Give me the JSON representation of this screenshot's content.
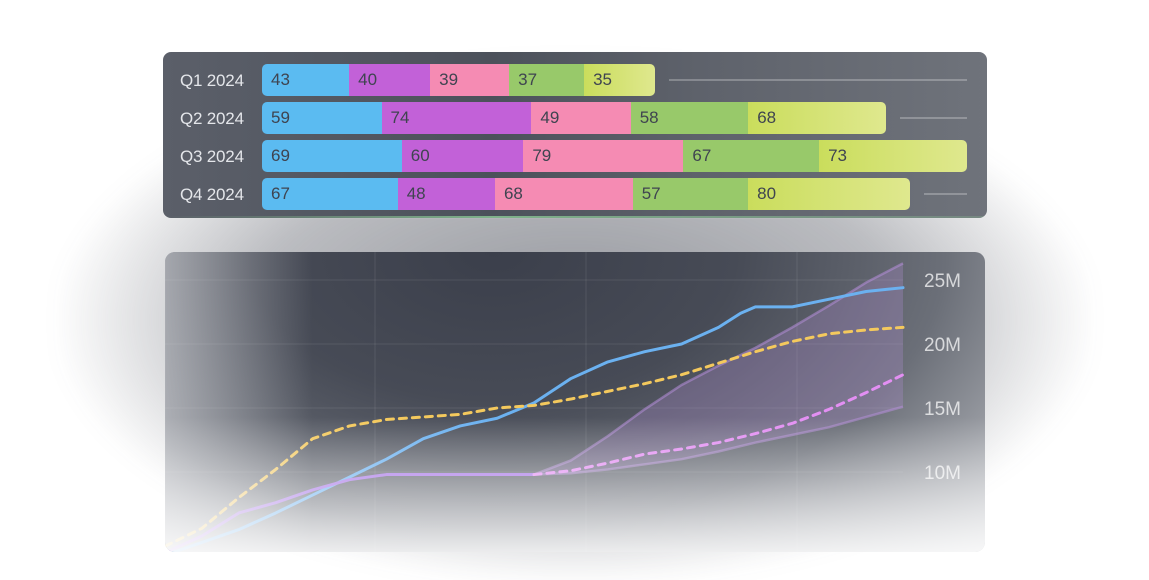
{
  "chart_data": [
    {
      "type": "bar",
      "orientation": "horizontal",
      "stacked": true,
      "categories": [
        "Q1 2024",
        "Q2 2024",
        "Q3 2024",
        "Q4 2024"
      ],
      "series": [
        {
          "values": [
            43,
            59,
            69,
            67
          ],
          "color": "#5bbbf1"
        },
        {
          "values": [
            40,
            74,
            60,
            48
          ],
          "color": "#c261d8"
        },
        {
          "values": [
            39,
            49,
            79,
            68
          ],
          "color": "#f58bb3"
        },
        {
          "values": [
            37,
            58,
            67,
            57
          ],
          "color": "#98c96a"
        },
        {
          "values": [
            35,
            68,
            73,
            80
          ],
          "color": "#cadd5c"
        }
      ],
      "xlim": [
        0,
        348
      ]
    },
    {
      "type": "line",
      "y_ticks": [
        "10M",
        "15M",
        "20M",
        "25M"
      ],
      "ylim": [
        0,
        28
      ],
      "xlim": [
        0,
        100
      ],
      "grid": true,
      "series": [
        {
          "style": "solid",
          "color": "#6bb1f0",
          "x": [
            0,
            5,
            10,
            15,
            20,
            25,
            30,
            35,
            40,
            45,
            50,
            55,
            60,
            65,
            70,
            75,
            78,
            80,
            82,
            85,
            90,
            95,
            100
          ],
          "y": [
            3.5,
            4.5,
            5.5,
            6.8,
            8.2,
            9.6,
            11.0,
            12.6,
            13.6,
            14.2,
            15.4,
            17.3,
            18.6,
            19.4,
            20.0,
            21.3,
            22.4,
            22.9,
            22.9,
            22.9,
            23.5,
            24.1,
            24.4
          ]
        },
        {
          "style": "dashed",
          "color": "#f4c95d",
          "x": [
            0,
            5,
            10,
            15,
            20,
            25,
            30,
            35,
            40,
            45,
            50,
            55,
            60,
            65,
            70,
            75,
            80,
            85,
            90,
            95,
            100
          ],
          "y": [
            4.2,
            5.6,
            8.0,
            10.2,
            12.6,
            13.6,
            14.1,
            14.3,
            14.5,
            15.0,
            15.2,
            15.7,
            16.3,
            16.9,
            17.6,
            18.5,
            19.4,
            20.2,
            20.8,
            21.1,
            21.3
          ]
        },
        {
          "style": "solid",
          "color": "#a573e6",
          "x": [
            0,
            5,
            10,
            15,
            20,
            25,
            30,
            35,
            40,
            45,
            50
          ],
          "y": [
            3.7,
            5.0,
            6.8,
            7.6,
            8.6,
            9.4,
            9.8,
            9.8,
            9.8,
            9.8,
            9.8
          ]
        },
        {
          "style": "dashed",
          "color": "#e38ff3",
          "x": [
            50,
            55,
            60,
            65,
            70,
            75,
            80,
            85,
            90,
            95,
            100
          ],
          "y": [
            9.8,
            10.1,
            10.7,
            11.4,
            11.8,
            12.3,
            13.0,
            13.8,
            14.9,
            16.2,
            17.6
          ]
        }
      ],
      "band": {
        "color": "#b58ed8",
        "x": [
          50,
          55,
          60,
          65,
          70,
          75,
          80,
          85,
          90,
          95,
          100
        ],
        "upper": [
          9.8,
          10.9,
          12.8,
          14.9,
          16.8,
          18.3,
          19.7,
          21.3,
          23.0,
          24.8,
          26.3
        ],
        "lower": [
          9.8,
          9.9,
          10.2,
          10.6,
          11.0,
          11.6,
          12.3,
          12.9,
          13.5,
          14.3,
          15.1
        ]
      }
    }
  ]
}
